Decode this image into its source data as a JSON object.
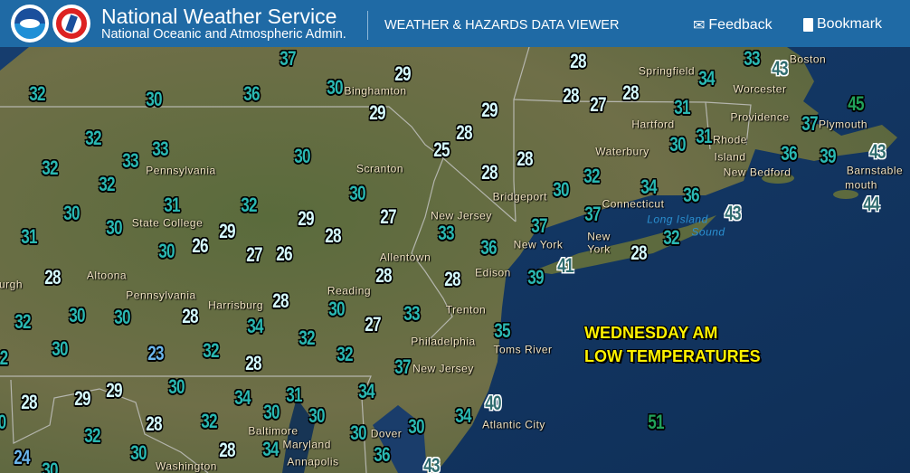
{
  "header": {
    "title": "National Weather Service",
    "subtitle": "National Oceanic and Atmospheric Admin.",
    "viewer_label": "WEATHER & HAZARDS DATA VIEWER",
    "feedback_label": "Feedback",
    "bookmark_label": "Bookmark",
    "background": "#1f6aa5"
  },
  "caption": {
    "line1": "WEDNESDAY AM",
    "line2": "LOW TEMPERATURES",
    "color": "#fff200"
  },
  "legend_colors": {
    "cold": "#d6fbff",
    "cool": "#2ab8b2",
    "verycold": "#6bb6ec",
    "mild": "#2f6c6f",
    "warm": "#21a25a"
  },
  "temperature_labels": [
    {
      "value": "37",
      "category": "cool"
    },
    {
      "value": "32",
      "category": "cool"
    },
    {
      "value": "30",
      "category": "cool"
    },
    {
      "value": "36",
      "category": "cool"
    },
    {
      "value": "30",
      "category": "cool"
    },
    {
      "value": "29",
      "category": "cold"
    },
    {
      "value": "29",
      "category": "cold"
    },
    {
      "value": "32",
      "category": "cool"
    },
    {
      "value": "33",
      "category": "cool"
    },
    {
      "value": "33",
      "category": "cool"
    },
    {
      "value": "32",
      "category": "cool"
    },
    {
      "value": "30",
      "category": "cool"
    },
    {
      "value": "32",
      "category": "cool"
    },
    {
      "value": "29",
      "category": "cold"
    },
    {
      "value": "28",
      "category": "cold"
    },
    {
      "value": "25",
      "category": "cold"
    },
    {
      "value": "28",
      "category": "cold"
    },
    {
      "value": "28",
      "category": "cold"
    },
    {
      "value": "30",
      "category": "cool"
    },
    {
      "value": "31",
      "category": "cool"
    },
    {
      "value": "32",
      "category": "cool"
    },
    {
      "value": "30",
      "category": "cool"
    },
    {
      "value": "30",
      "category": "cool"
    },
    {
      "value": "31",
      "category": "cool"
    },
    {
      "value": "29",
      "category": "cold"
    },
    {
      "value": "27",
      "category": "cold"
    },
    {
      "value": "28",
      "category": "cold"
    },
    {
      "value": "33",
      "category": "cool"
    },
    {
      "value": "29",
      "category": "cold"
    },
    {
      "value": "26",
      "category": "cold"
    },
    {
      "value": "30",
      "category": "cool"
    },
    {
      "value": "27",
      "category": "cold"
    },
    {
      "value": "26",
      "category": "cold"
    },
    {
      "value": "28",
      "category": "cold"
    },
    {
      "value": "28",
      "category": "cold"
    },
    {
      "value": "28",
      "category": "cold"
    },
    {
      "value": "39",
      "category": "cool"
    },
    {
      "value": "41",
      "category": "mild"
    },
    {
      "value": "36",
      "category": "cool"
    },
    {
      "value": "37",
      "category": "cool"
    },
    {
      "value": "28",
      "category": "cold"
    },
    {
      "value": "28",
      "category": "cold"
    },
    {
      "value": "27",
      "category": "cold"
    },
    {
      "value": "28",
      "category": "cold"
    },
    {
      "value": "34",
      "category": "cool"
    },
    {
      "value": "33",
      "category": "cool"
    },
    {
      "value": "43",
      "category": "mild"
    },
    {
      "value": "31",
      "category": "cool"
    },
    {
      "value": "30",
      "category": "cool"
    },
    {
      "value": "31",
      "category": "cool"
    },
    {
      "value": "37",
      "category": "cool"
    },
    {
      "value": "45",
      "category": "warm"
    },
    {
      "value": "43",
      "category": "mild"
    },
    {
      "value": "36",
      "category": "cool"
    },
    {
      "value": "39",
      "category": "cool"
    },
    {
      "value": "32",
      "category": "cool"
    },
    {
      "value": "30",
      "category": "cool"
    },
    {
      "value": "34",
      "category": "cool"
    },
    {
      "value": "36",
      "category": "cool"
    },
    {
      "value": "37",
      "category": "cool"
    },
    {
      "value": "43",
      "category": "mild"
    },
    {
      "value": "44",
      "category": "mild"
    },
    {
      "value": "32",
      "category": "cool"
    },
    {
      "value": "28",
      "category": "cold"
    },
    {
      "value": "32",
      "category": "cool"
    },
    {
      "value": "30",
      "category": "cool"
    },
    {
      "value": "30",
      "category": "cool"
    },
    {
      "value": "28",
      "category": "cold"
    },
    {
      "value": "28",
      "category": "cold"
    },
    {
      "value": "34",
      "category": "cool"
    },
    {
      "value": "30",
      "category": "cool"
    },
    {
      "value": "27",
      "category": "cold"
    },
    {
      "value": "33",
      "category": "cool"
    },
    {
      "value": "32",
      "category": "cool"
    },
    {
      "value": "32",
      "category": "cool"
    },
    {
      "value": "30",
      "category": "cool"
    },
    {
      "value": "23",
      "category": "verycold"
    },
    {
      "value": "32",
      "category": "cool"
    },
    {
      "value": "28",
      "category": "cold"
    },
    {
      "value": "2",
      "category": "cool"
    },
    {
      "value": "35",
      "category": "cool"
    },
    {
      "value": "37",
      "category": "cool"
    },
    {
      "value": "34",
      "category": "cool"
    },
    {
      "value": "40",
      "category": "mild"
    },
    {
      "value": "34",
      "category": "cool"
    },
    {
      "value": "28",
      "category": "cold"
    },
    {
      "value": "29",
      "category": "cold"
    },
    {
      "value": "29",
      "category": "cold"
    },
    {
      "value": "30",
      "category": "cool"
    },
    {
      "value": "34",
      "category": "cool"
    },
    {
      "value": "31",
      "category": "cool"
    },
    {
      "value": "30",
      "category": "cool"
    },
    {
      "value": "30",
      "category": "cool"
    },
    {
      "value": "28",
      "category": "cold"
    },
    {
      "value": "32",
      "category": "cool"
    },
    {
      "value": "32",
      "category": "cool"
    },
    {
      "value": "0",
      "category": "cool"
    },
    {
      "value": "30",
      "category": "cool"
    },
    {
      "value": "30",
      "category": "cool"
    },
    {
      "value": "28",
      "category": "cold"
    },
    {
      "value": "34",
      "category": "cool"
    },
    {
      "value": "30",
      "category": "cool"
    },
    {
      "value": "24",
      "category": "verycold"
    },
    {
      "value": "36",
      "category": "cool"
    },
    {
      "value": "43",
      "category": "mild"
    },
    {
      "value": "30",
      "category": "cool"
    },
    {
      "value": "51",
      "category": "warm"
    }
  ],
  "places": [
    "Binghamton",
    "Pennsylvania",
    "Scranton",
    "New Jersey",
    "State College",
    "Altoona",
    "urgh",
    "Allentown",
    "Edison",
    "New York",
    "Springfield",
    "Worcester",
    "Boston",
    "Hartford",
    "Rhode",
    "Island",
    "Providence",
    "Plymouth",
    "Barnstable",
    "New Bedford",
    "mouth",
    "Waterbury",
    "Connecticut",
    "Bridgeport",
    "Long Island",
    "Sound",
    "New",
    "York",
    "Pennsylvania",
    "Harrisburg",
    "Reading",
    "Trenton",
    "Philadelphia",
    "Toms River",
    "New Jersey",
    "Atlantic City",
    "Baltimore",
    "Dover",
    "Maryland",
    "Annapolis",
    "Washington"
  ]
}
